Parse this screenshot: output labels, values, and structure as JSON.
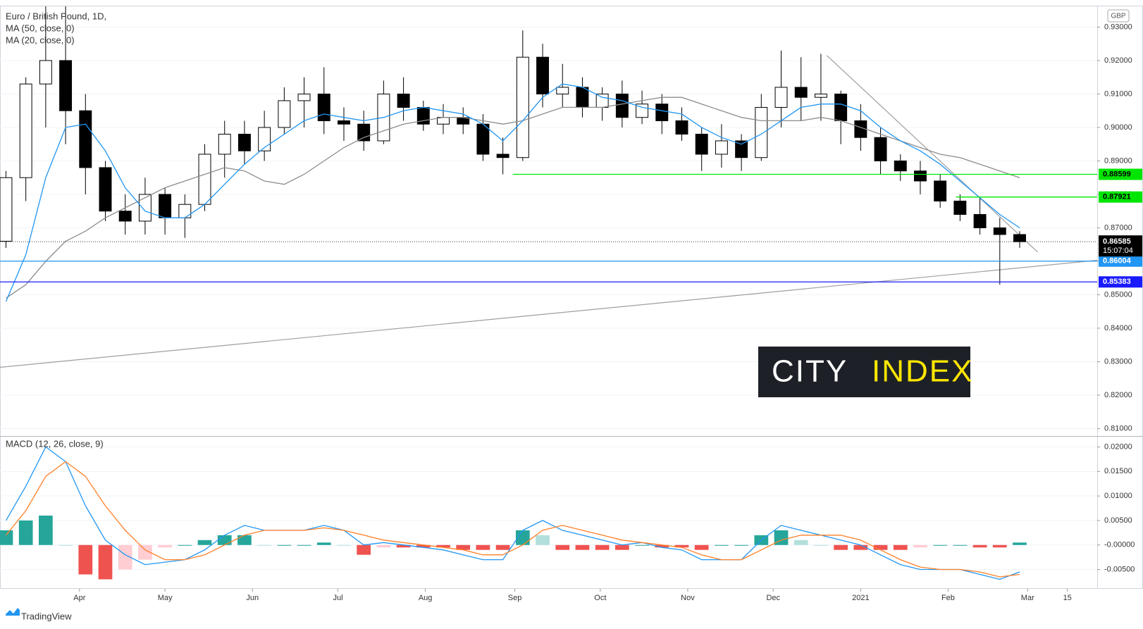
{
  "chart_data": [
    {
      "type": "candlestick",
      "title": "Euro / British Pound, 1D,",
      "axis_unit": "GBP",
      "ylim": [
        0.8082,
        0.9362
      ],
      "yticks": [
        {
          "value": 0.81,
          "label": "0.81000"
        },
        {
          "value": 0.82,
          "label": "0.82000"
        },
        {
          "value": 0.83,
          "label": "0.83000"
        },
        {
          "value": 0.84,
          "label": "0.84000"
        },
        {
          "value": 0.85,
          "label": "0.85000"
        },
        {
          "value": 0.86,
          "label": "0.86000"
        },
        {
          "value": 0.87,
          "label": "0.87000"
        },
        {
          "value": 0.88,
          "label": "0.88000"
        },
        {
          "value": 0.89,
          "label": "0.89000"
        },
        {
          "value": 0.9,
          "label": "0.90000"
        },
        {
          "value": 0.91,
          "label": "0.91000"
        },
        {
          "value": 0.92,
          "label": "0.92000"
        },
        {
          "value": 0.93,
          "label": "0.93000"
        }
      ],
      "up_color": "#ffffff",
      "down_color": "#000000",
      "grid": true,
      "open": [
        0.866,
        0.885,
        0.913,
        0.92,
        0.905,
        0.888,
        0.875,
        0.872,
        0.88,
        0.873,
        0.877,
        0.892,
        0.898,
        0.893,
        0.9,
        0.908,
        0.91,
        0.902,
        0.901,
        0.896,
        0.91,
        0.906,
        0.901,
        0.903,
        0.901,
        0.892,
        0.891,
        0.921,
        0.91,
        0.912,
        0.906,
        0.91,
        0.903,
        0.907,
        0.902,
        0.898,
        0.892,
        0.896,
        0.891,
        0.906,
        0.912,
        0.909,
        0.91,
        0.902,
        0.897,
        0.89,
        0.887,
        0.884,
        0.878,
        0.874,
        0.87,
        0.868
      ],
      "high": [
        0.887,
        0.915,
        0.938,
        0.94,
        0.91,
        0.89,
        0.88,
        0.885,
        0.882,
        0.88,
        0.895,
        0.902,
        0.902,
        0.905,
        0.912,
        0.915,
        0.918,
        0.906,
        0.905,
        0.914,
        0.915,
        0.908,
        0.907,
        0.906,
        0.904,
        0.897,
        0.929,
        0.925,
        0.919,
        0.915,
        0.912,
        0.914,
        0.911,
        0.91,
        0.906,
        0.9,
        0.901,
        0.898,
        0.91,
        0.923,
        0.921,
        0.922,
        0.911,
        0.907,
        0.9,
        0.892,
        0.89,
        0.886,
        0.88,
        0.879,
        0.873,
        0.869
      ],
      "low": [
        0.864,
        0.878,
        0.9,
        0.895,
        0.88,
        0.872,
        0.868,
        0.868,
        0.868,
        0.867,
        0.875,
        0.885,
        0.889,
        0.89,
        0.898,
        0.9,
        0.898,
        0.896,
        0.893,
        0.895,
        0.902,
        0.899,
        0.898,
        0.898,
        0.89,
        0.886,
        0.89,
        0.906,
        0.906,
        0.903,
        0.902,
        0.9,
        0.901,
        0.898,
        0.896,
        0.887,
        0.888,
        0.887,
        0.89,
        0.9,
        0.902,
        0.902,
        0.895,
        0.893,
        0.886,
        0.884,
        0.88,
        0.876,
        0.872,
        0.868,
        0.853,
        0.864
      ],
      "close": [
        0.885,
        0.913,
        0.92,
        0.905,
        0.888,
        0.875,
        0.872,
        0.88,
        0.873,
        0.877,
        0.892,
        0.898,
        0.893,
        0.9,
        0.908,
        0.91,
        0.902,
        0.901,
        0.896,
        0.91,
        0.906,
        0.901,
        0.903,
        0.901,
        0.892,
        0.891,
        0.921,
        0.91,
        0.912,
        0.906,
        0.91,
        0.903,
        0.907,
        0.902,
        0.898,
        0.892,
        0.896,
        0.891,
        0.906,
        0.912,
        0.909,
        0.91,
        0.902,
        0.897,
        0.89,
        0.887,
        0.884,
        0.878,
        0.874,
        0.87,
        0.868,
        0.86585
      ],
      "series": [
        {
          "name": "MA (50, close, 0)",
          "color": "#8c8c8c",
          "values": [
            0.849,
            0.853,
            0.86,
            0.866,
            0.869,
            0.873,
            0.876,
            0.879,
            0.882,
            0.884,
            0.886,
            0.888,
            0.887,
            0.884,
            0.883,
            0.886,
            0.89,
            0.894,
            0.897,
            0.899,
            0.901,
            0.902,
            0.903,
            0.903,
            0.902,
            0.901,
            0.902,
            0.904,
            0.906,
            0.906,
            0.906,
            0.907,
            0.908,
            0.909,
            0.909,
            0.907,
            0.905,
            0.903,
            0.902,
            0.902,
            0.902,
            0.903,
            0.902,
            0.9,
            0.898,
            0.896,
            0.894,
            0.892,
            0.891,
            0.889,
            0.887,
            0.885
          ]
        },
        {
          "name": "MA (20, close, 0)",
          "color": "#2196f3",
          "values": [
            0.848,
            0.862,
            0.885,
            0.9,
            0.901,
            0.893,
            0.882,
            0.875,
            0.873,
            0.873,
            0.877,
            0.883,
            0.889,
            0.894,
            0.898,
            0.902,
            0.904,
            0.903,
            0.902,
            0.903,
            0.905,
            0.906,
            0.905,
            0.904,
            0.901,
            0.896,
            0.902,
            0.909,
            0.913,
            0.912,
            0.909,
            0.908,
            0.906,
            0.905,
            0.904,
            0.9,
            0.897,
            0.895,
            0.898,
            0.902,
            0.906,
            0.907,
            0.907,
            0.905,
            0.9,
            0.896,
            0.893,
            0.889,
            0.884,
            0.879,
            0.874,
            0.87
          ]
        }
      ],
      "hlines": [
        {
          "value": 0.88599,
          "color": "#00e600",
          "text_color": "#000000",
          "from": 25.5
        },
        {
          "value": 0.87921,
          "color": "#00e600",
          "text_color": "#000000",
          "from": 47.8
        },
        {
          "value": 0.86004,
          "color": "#2196f3",
          "text_color": "#ffffff",
          "from": -0.3
        },
        {
          "value": 0.85383,
          "color": "#1a1aff",
          "text_color": "#ffffff",
          "from": -0.3
        }
      ],
      "last": {
        "value": 0.86585,
        "countdown": "15:07:04"
      },
      "trendlines": [
        {
          "color": "#9e9e9e",
          "x": [
            -0.3,
            54.9
          ],
          "y": [
            0.8283,
            0.8603
          ]
        },
        {
          "color": "#9e9e9e",
          "x": [
            41.3,
            51.9
          ],
          "y": [
            0.9215,
            0.8628
          ]
        }
      ]
    },
    {
      "type": "line",
      "title": "MACD (12, 26, close, 9)",
      "xlim": [
        -0.3,
        54.9
      ],
      "xticks": [
        {
          "value": 3.7,
          "label": "Apr"
        },
        {
          "value": 8,
          "label": "May"
        },
        {
          "value": 12.4,
          "label": "Jun"
        },
        {
          "value": 16.7,
          "label": "Jul"
        },
        {
          "value": 21.1,
          "label": "Aug"
        },
        {
          "value": 25.6,
          "label": "Sep"
        },
        {
          "value": 29.9,
          "label": "Oct"
        },
        {
          "value": 34.3,
          "label": "Nov"
        },
        {
          "value": 38.6,
          "label": "Dec"
        },
        {
          "value": 43,
          "label": "2021"
        },
        {
          "value": 47.4,
          "label": "Feb"
        },
        {
          "value": 51.4,
          "label": "Mar"
        },
        {
          "value": 53.4,
          "label": "15"
        }
      ],
      "ylim": [
        -0.0088,
        0.0218
      ],
      "yticks": [
        {
          "value": 0.02,
          "label": "0.02000"
        },
        {
          "value": 0.015,
          "label": "0.01500"
        },
        {
          "value": 0.01,
          "label": "0.01000"
        },
        {
          "value": 0.005,
          "label": "0.00500"
        },
        {
          "value": 0,
          "label": "-0.00000"
        },
        {
          "value": -0.005,
          "label": "-0.00500"
        }
      ],
      "series": [
        {
          "color": "#2196f3",
          "values": [
            0.005,
            0.012,
            0.02,
            0.017,
            0.008,
            0.001,
            -0.002,
            -0.004,
            -0.0035,
            -0.003,
            -0.001,
            0.002,
            0.004,
            0.003,
            0.003,
            0.003,
            0.004,
            0.003,
            0.0,
            0.0005,
            0.0,
            -0.0005,
            -0.001,
            -0.002,
            -0.003,
            -0.003,
            0.003,
            0.005,
            0.003,
            0.002,
            0.001,
            0.0,
            0.0005,
            -0.0005,
            -0.001,
            -0.003,
            -0.003,
            -0.003,
            0.001,
            0.004,
            0.003,
            0.002,
            0.001,
            0.0,
            -0.002,
            -0.004,
            -0.005,
            -0.005,
            -0.005,
            -0.006,
            -0.007,
            -0.0055
          ]
        },
        {
          "color": "#ff7f27",
          "values": [
            0.002,
            0.007,
            0.014,
            0.017,
            0.014,
            0.008,
            0.003,
            -0.001,
            -0.003,
            -0.003,
            -0.002,
            0.0,
            0.002,
            0.003,
            0.003,
            0.003,
            0.0035,
            0.003,
            0.002,
            0.001,
            0.0005,
            0.0,
            -0.0005,
            -0.001,
            -0.002,
            -0.002,
            0.0,
            0.003,
            0.004,
            0.003,
            0.002,
            0.001,
            0.0005,
            0.0,
            -0.0005,
            -0.002,
            -0.003,
            -0.003,
            -0.001,
            0.001,
            0.002,
            0.002,
            0.002,
            0.001,
            -0.001,
            -0.003,
            -0.0045,
            -0.005,
            -0.005,
            -0.0055,
            -0.0065,
            -0.006
          ]
        }
      ],
      "histogram": {
        "colors": [
          "#26a69a",
          "#b2dfdb",
          "#ffcdd2",
          "#ef5350"
        ],
        "values": [
          0.003,
          0.005,
          0.006,
          0.0,
          -0.006,
          -0.007,
          -0.005,
          -0.003,
          -0.0005,
          0.0,
          0.001,
          0.002,
          0.002,
          0.0,
          0.0,
          0.0,
          0.0005,
          0.0,
          -0.002,
          -0.0005,
          -0.0005,
          -0.0005,
          -0.0005,
          -0.001,
          -0.001,
          -0.001,
          0.003,
          0.002,
          -0.001,
          -0.001,
          -0.001,
          -0.001,
          0.0,
          -0.0005,
          -0.0005,
          -0.001,
          0.0,
          0.0,
          0.002,
          0.003,
          0.001,
          0.0,
          -0.001,
          -0.001,
          -0.001,
          -0.001,
          -0.0005,
          0.0,
          0.0,
          -0.0005,
          -0.0005,
          0.0005
        ]
      }
    }
  ],
  "logo": {
    "left": "CITY",
    "right": "INDEX"
  },
  "footer": "TradingView"
}
